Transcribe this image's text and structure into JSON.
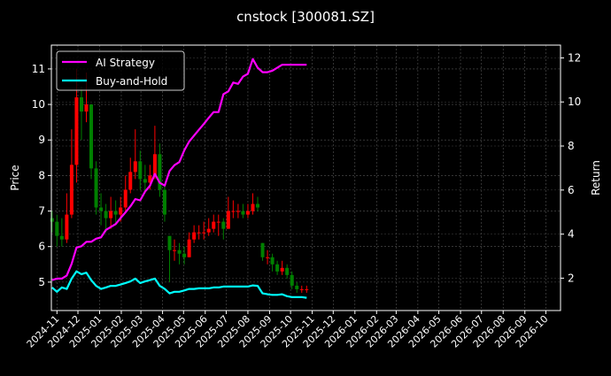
{
  "chart_data": {
    "type": "line",
    "title": "cnstock [300081.SZ]",
    "ylabel": "Price",
    "y2label": "Return",
    "ylim": [
      4.2,
      11.67
    ],
    "y2lim": [
      0.53,
      12.58
    ],
    "xlim": [
      "2024-10-24",
      "2026-10-22"
    ],
    "grid": true,
    "legend_position": "upper-left",
    "yticks": [
      5,
      6,
      7,
      8,
      9,
      10,
      11
    ],
    "y2ticks": [
      2,
      4,
      6,
      8,
      10,
      12
    ],
    "xticks": [
      "2024-11",
      "2024-12",
      "2025-01",
      "2025-02",
      "2025-03",
      "2025-04",
      "2025-05",
      "2025-06",
      "2025-07",
      "2025-08",
      "2025-09",
      "2025-10",
      "2025-11",
      "2025-12",
      "2026-01",
      "2026-02",
      "2026-03",
      "2026-04",
      "2026-05",
      "2026-06",
      "2026-07",
      "2026-08",
      "2026-09",
      "2026-10"
    ],
    "dates": [
      "2024-10-25",
      "2024-11-01",
      "2024-11-08",
      "2024-11-15",
      "2024-11-22",
      "2024-11-29",
      "2024-12-06",
      "2024-12-13",
      "2024-12-20",
      "2024-12-27",
      "2025-01-03",
      "2025-01-10",
      "2025-01-17",
      "2025-01-24",
      "2025-01-31",
      "2025-02-07",
      "2025-02-14",
      "2025-02-21",
      "2025-02-28",
      "2025-03-07",
      "2025-03-14",
      "2025-03-21",
      "2025-03-28",
      "2025-04-04",
      "2025-04-11",
      "2025-04-18",
      "2025-04-25",
      "2025-05-02",
      "2025-05-09",
      "2025-05-16",
      "2025-05-23",
      "2025-05-30",
      "2025-06-06",
      "2025-06-13",
      "2025-06-20",
      "2025-06-27",
      "2025-07-04",
      "2025-07-11",
      "2025-07-18",
      "2025-07-25",
      "2025-08-01",
      "2025-08-08",
      "2025-08-15",
      "2025-08-22",
      "2025-08-29",
      "2025-09-05",
      "2025-09-12",
      "2025-09-19",
      "2025-09-26",
      "2025-10-03",
      "2025-10-10",
      "2025-10-17",
      "2025-10-24"
    ],
    "ohlc": [
      [
        6.8,
        7.0,
        6.4,
        6.7
      ],
      [
        6.7,
        6.9,
        6.0,
        6.3
      ],
      [
        6.3,
        6.8,
        6.0,
        6.2
      ],
      [
        6.2,
        7.5,
        6.1,
        6.9
      ],
      [
        6.9,
        9.3,
        6.8,
        8.3
      ],
      [
        8.3,
        11.0,
        7.8,
        10.2
      ],
      [
        10.2,
        10.5,
        9.0,
        9.8
      ],
      [
        9.8,
        10.9,
        9.5,
        10.0
      ],
      [
        10.0,
        10.0,
        7.9,
        8.2
      ],
      [
        8.2,
        8.4,
        6.9,
        7.1
      ],
      [
        7.1,
        7.5,
        6.6,
        7.0
      ],
      [
        7.0,
        7.2,
        6.4,
        6.8
      ],
      [
        6.8,
        7.4,
        6.5,
        7.0
      ],
      [
        7.0,
        7.3,
        6.6,
        6.9
      ],
      [
        6.9,
        7.4,
        6.7,
        7.1
      ],
      [
        7.1,
        8.0,
        7.0,
        7.6
      ],
      [
        7.6,
        8.5,
        7.5,
        8.1
      ],
      [
        8.1,
        9.3,
        7.9,
        8.4
      ],
      [
        8.4,
        8.7,
        7.6,
        7.9
      ],
      [
        7.9,
        8.3,
        7.5,
        7.8
      ],
      [
        7.8,
        8.3,
        7.6,
        8.0
      ],
      [
        8.0,
        9.4,
        7.9,
        8.6
      ],
      [
        8.6,
        8.9,
        7.4,
        7.6
      ],
      [
        7.6,
        7.7,
        6.7,
        6.9
      ],
      [
        6.3,
        6.3,
        5.0,
        5.9
      ],
      [
        5.9,
        6.2,
        5.6,
        5.9
      ],
      [
        5.9,
        6.1,
        5.5,
        5.8
      ],
      [
        5.8,
        6.0,
        5.5,
        5.7
      ],
      [
        5.7,
        6.4,
        5.7,
        6.2
      ],
      [
        6.2,
        6.6,
        6.1,
        6.4
      ],
      [
        6.4,
        6.6,
        6.2,
        6.4
      ],
      [
        6.4,
        6.7,
        6.2,
        6.4
      ],
      [
        6.4,
        6.8,
        6.3,
        6.5
      ],
      [
        6.5,
        6.9,
        6.4,
        6.7
      ],
      [
        6.7,
        6.9,
        6.3,
        6.7
      ],
      [
        6.7,
        6.8,
        6.2,
        6.5
      ],
      [
        6.5,
        7.4,
        6.5,
        7.0
      ],
      [
        7.0,
        7.3,
        6.8,
        7.0
      ],
      [
        7.0,
        7.2,
        6.8,
        7.0
      ],
      [
        7.0,
        7.2,
        6.8,
        6.9
      ],
      [
        6.9,
        7.2,
        6.8,
        7.0
      ],
      [
        7.0,
        7.5,
        6.9,
        7.2
      ],
      [
        7.2,
        7.4,
        7.0,
        7.1
      ],
      [
        6.1,
        6.1,
        5.6,
        5.7
      ],
      [
        5.7,
        5.9,
        5.5,
        5.7
      ],
      [
        5.7,
        5.8,
        5.3,
        5.5
      ],
      [
        5.5,
        5.6,
        5.2,
        5.3
      ],
      [
        5.3,
        5.6,
        5.2,
        5.4
      ],
      [
        5.4,
        5.5,
        5.1,
        5.2
      ],
      [
        5.2,
        5.3,
        4.8,
        4.9
      ],
      [
        4.9,
        5.0,
        4.7,
        4.8
      ],
      [
        4.8,
        4.9,
        4.7,
        4.8
      ],
      [
        4.8,
        4.9,
        4.7,
        4.8
      ]
    ],
    "series": [
      {
        "name": "AI Strategy",
        "color": "#ff00ff",
        "axis": "right",
        "values": [
          1.91,
          1.98,
          1.98,
          2.12,
          2.65,
          3.39,
          3.45,
          3.65,
          3.65,
          3.79,
          3.85,
          4.19,
          4.32,
          4.46,
          4.73,
          4.99,
          5.26,
          5.59,
          5.53,
          5.93,
          6.2,
          6.73,
          6.33,
          6.2,
          6.87,
          7.13,
          7.27,
          7.8,
          8.2,
          8.47,
          8.74,
          9.0,
          9.28,
          9.54,
          9.54,
          10.35,
          10.48,
          10.88,
          10.82,
          11.15,
          11.28,
          11.95,
          11.55,
          11.35,
          11.35,
          11.42,
          11.55,
          11.69,
          11.69,
          11.69,
          11.69,
          11.69,
          11.69
        ]
      },
      {
        "name": "Buy-and-Hold",
        "color": "#00ffff",
        "axis": "right",
        "values": [
          1.58,
          1.38,
          1.58,
          1.51,
          1.98,
          2.31,
          2.18,
          2.25,
          1.91,
          1.65,
          1.51,
          1.58,
          1.65,
          1.65,
          1.71,
          1.78,
          1.85,
          1.98,
          1.78,
          1.85,
          1.91,
          1.98,
          1.65,
          1.51,
          1.31,
          1.38,
          1.38,
          1.44,
          1.51,
          1.51,
          1.54,
          1.54,
          1.54,
          1.58,
          1.58,
          1.62,
          1.62,
          1.62,
          1.62,
          1.62,
          1.62,
          1.67,
          1.65,
          1.31,
          1.27,
          1.24,
          1.24,
          1.27,
          1.18,
          1.14,
          1.14,
          1.14,
          1.11
        ]
      }
    ],
    "candle_up_color": "#ff0000",
    "candle_down_color": "#008000"
  }
}
